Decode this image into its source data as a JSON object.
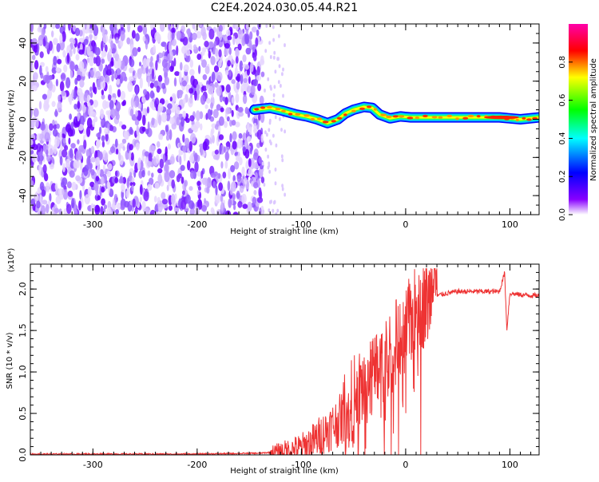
{
  "chart_data": [
    {
      "type": "heatmap",
      "title": "C2E4.2024.030.05.44.R21",
      "xlabel": "Height of straight line (km)",
      "ylabel": "Frequency (Hz)",
      "xlim": [
        -360,
        128
      ],
      "ylim": [
        -50,
        50
      ],
      "x_ticks": [
        "-300",
        "-200",
        "-100",
        "0",
        "100"
      ],
      "y_ticks": [
        "-40",
        "-20",
        "0",
        "20",
        "40"
      ],
      "noise_region_x": [
        -360,
        -137
      ],
      "signal_region_x": [
        -145,
        128
      ],
      "colorbar_label": "Normalized spectral amplitude",
      "colorbar_range": [
        0.0,
        1.0
      ],
      "colorbar_ticks": [
        "0.0",
        "0.2",
        "0.4",
        "0.6",
        "0.8"
      ],
      "colormap_colors": [
        "#ffffff",
        "#8800ff",
        "#0000ff",
        "#00ffff",
        "#00ff00",
        "#ffff00",
        "#ff0000",
        "#ff00aa"
      ],
      "signal_frequency_track": [
        [
          -145,
          5
        ],
        [
          -130,
          6
        ],
        [
          -118,
          4.5
        ],
        [
          -105,
          2.5
        ],
        [
          -95,
          1.5
        ],
        [
          -85,
          0
        ],
        [
          -75,
          -2
        ],
        [
          -65,
          0
        ],
        [
          -58,
          3
        ],
        [
          -50,
          5
        ],
        [
          -40,
          6.5
        ],
        [
          -32,
          6
        ],
        [
          -25,
          2.5
        ],
        [
          -15,
          0.5
        ],
        [
          -5,
          1.5
        ],
        [
          5,
          1
        ],
        [
          30,
          1
        ],
        [
          60,
          1
        ],
        [
          90,
          1
        ],
        [
          110,
          0
        ],
        [
          128,
          1
        ]
      ]
    },
    {
      "type": "line",
      "xlabel": "Height of straight line (km)",
      "ylabel": "SNR (10 * v/v)",
      "y_scale_label": "(x10⁴)",
      "xlim": [
        -360,
        128
      ],
      "ylim": [
        0,
        2.3
      ],
      "x_ticks": [
        "-300",
        "-200",
        "-100",
        "0",
        "100"
      ],
      "y_ticks": [
        "0.0",
        "0.5",
        "1.0",
        "1.5",
        "2.0"
      ],
      "series_color": "#ee3333",
      "series": [
        {
          "x": [
            -360,
            -300,
            -200,
            -140,
            -120,
            -100,
            -90,
            -80,
            -70,
            -60,
            -50,
            -40,
            -30,
            -20,
            -10,
            0,
            10,
            20,
            30,
            40,
            50,
            60,
            70,
            80,
            90,
            95,
            97,
            100,
            110,
            128
          ],
          "values": [
            0.01,
            0.01,
            0.01,
            0.02,
            0.04,
            0.08,
            0.15,
            0.25,
            0.35,
            0.45,
            0.65,
            0.85,
            0.95,
            1.1,
            1.35,
            1.5,
            1.75,
            1.85,
            1.92,
            1.95,
            1.97,
            1.97,
            1.97,
            1.97,
            1.97,
            2.2,
            1.5,
            1.95,
            1.93,
            1.92
          ]
        }
      ]
    }
  ]
}
